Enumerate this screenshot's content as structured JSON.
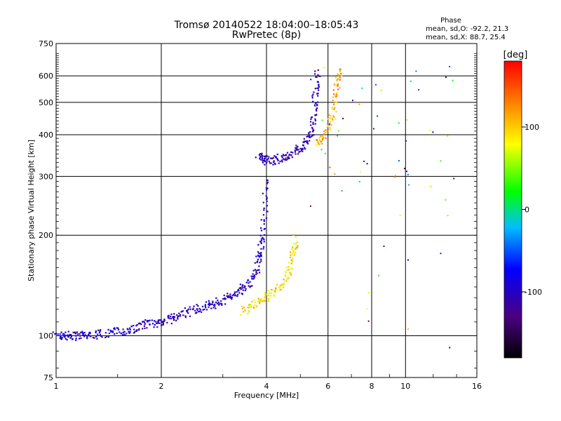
{
  "chart_data": {
    "type": "scatter",
    "title": "Tromsø 20140522 18:04:00–18:05:43",
    "subtitle": "RwPretec (8p)",
    "xlabel": "Frequency [MHz]",
    "ylabel": "Stationary phase Virtual Height [km]",
    "xscale": "log2",
    "yscale": "log",
    "xlim": [
      1,
      16
    ],
    "ylim": [
      75,
      750
    ],
    "x_ticks": [
      1,
      2,
      4,
      6,
      8,
      10,
      16
    ],
    "y_ticks": [
      75,
      100,
      200,
      300,
      400,
      500,
      600,
      750
    ],
    "grid": true,
    "phase_info": {
      "title": "Phase",
      "line1": "mean, sd,O: -92.2, 21.3",
      "line2": "mean, sd,X:  88.7, 25.4"
    },
    "colorbar": {
      "label": "[deg]",
      "range": [
        -180,
        180
      ],
      "ticks": [
        100,
        0,
        -100
      ],
      "colors": [
        "#000000",
        "#4b0082",
        "#0000ff",
        "#00bfff",
        "#00ff00",
        "#ffff00",
        "#ff8000",
        "#ff0000"
      ]
    },
    "traces": [
      {
        "x": [
          1.0,
          1.05,
          1.1,
          1.15,
          1.2,
          1.3,
          1.4,
          1.5,
          1.6,
          1.7,
          1.8,
          1.9,
          2.0,
          2.1,
          2.2,
          2.35,
          2.5,
          2.65,
          2.8,
          2.95,
          3.1,
          3.25,
          3.4,
          3.55,
          3.7,
          3.8,
          3.85,
          3.9,
          3.95,
          4.0
        ],
        "y": [
          100,
          100,
          100,
          100,
          100,
          101,
          102,
          103,
          104,
          106,
          108,
          109,
          110,
          112,
          114,
          117,
          120,
          122,
          124,
          127,
          130,
          134,
          138,
          144,
          152,
          165,
          180,
          200,
          240,
          290
        ],
        "phase": -100
      },
      {
        "x": [
          3.8,
          3.9,
          4.0,
          4.2,
          4.4,
          4.6,
          4.8,
          5.0,
          5.2,
          5.35,
          5.45,
          5.5,
          5.55,
          5.6
        ],
        "y": [
          350,
          340,
          335,
          335,
          340,
          345,
          355,
          365,
          380,
          400,
          440,
          500,
          560,
          620
        ],
        "phase": -110
      },
      {
        "x": [
          3.4,
          3.6,
          3.8,
          4.0,
          4.2,
          4.4,
          4.6,
          4.7,
          4.8,
          4.85
        ],
        "y": [
          118,
          122,
          126,
          130,
          136,
          142,
          152,
          165,
          180,
          198
        ],
        "phase": 90
      },
      {
        "x": [
          5.6,
          5.8,
          6.0,
          6.2,
          6.3,
          6.4,
          6.45
        ],
        "y": [
          380,
          390,
          420,
          460,
          520,
          580,
          630
        ],
        "phase": 110
      }
    ]
  }
}
